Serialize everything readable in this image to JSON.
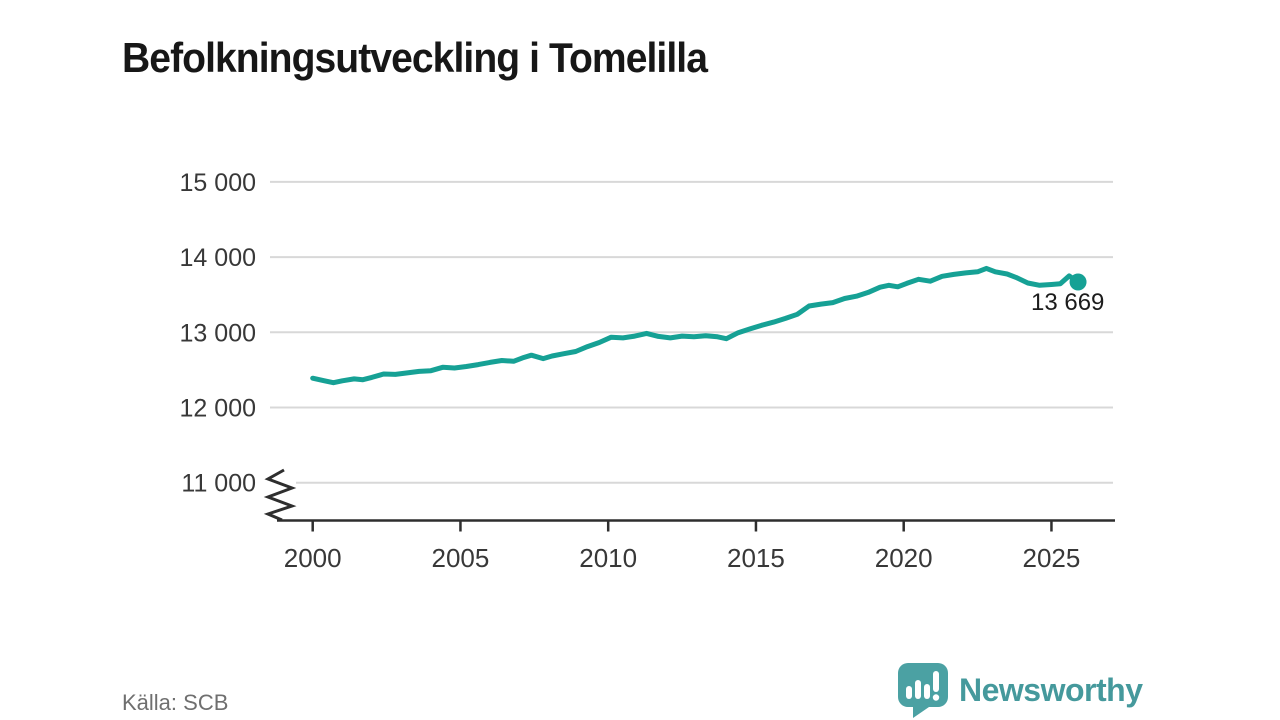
{
  "title": "Befolkningsutveckling i Tomelilla",
  "source": "Källa: SCB",
  "branding": {
    "wordmark": "Newsworthy",
    "logo_icon": "speech-bubble-with-bar-chart-and-exclamation",
    "wordmark_color": "#45999c",
    "icon_color": "#4ba1a3"
  },
  "colors": {
    "line": "#16a195",
    "grid": "#d8d8d8",
    "axis": "#2e2e2e",
    "tick_text": "#383838",
    "title_text": "#171717",
    "muted_text": "#6f6f6f"
  },
  "chart_data": {
    "type": "line",
    "title": "Befolkningsutveckling i Tomelilla",
    "xlabel": "",
    "ylabel": "",
    "x_range": [
      1999,
      2027.3
    ],
    "y_range_displayed": [
      10500,
      15000
    ],
    "y_axis_break": true,
    "grid": "horizontal",
    "has_legend": false,
    "line_width": 5,
    "x_ticks": [
      {
        "value": 2000,
        "label": "2000"
      },
      {
        "value": 2005,
        "label": "2005"
      },
      {
        "value": 2010,
        "label": "2010"
      },
      {
        "value": 2015,
        "label": "2015"
      },
      {
        "value": 2020,
        "label": "2020"
      },
      {
        "value": 2025,
        "label": "2025"
      }
    ],
    "y_ticks": [
      {
        "value": 15000,
        "label": "15 000"
      },
      {
        "value": 14000,
        "label": "14 000"
      },
      {
        "value": 13000,
        "label": "13 000"
      },
      {
        "value": 12000,
        "label": "12 000"
      },
      {
        "value": 11000,
        "label": "11 000"
      }
    ],
    "series": [
      {
        "points": [
          [
            2000.0,
            12390
          ],
          [
            2000.4,
            12355
          ],
          [
            2000.7,
            12330
          ],
          [
            2001.0,
            12355
          ],
          [
            2001.4,
            12380
          ],
          [
            2001.7,
            12370
          ],
          [
            2002.0,
            12400
          ],
          [
            2002.4,
            12445
          ],
          [
            2002.8,
            12440
          ],
          [
            2003.2,
            12460
          ],
          [
            2003.6,
            12480
          ],
          [
            2004.0,
            12490
          ],
          [
            2004.4,
            12535
          ],
          [
            2004.8,
            12525
          ],
          [
            2005.2,
            12545
          ],
          [
            2005.6,
            12570
          ],
          [
            2006.0,
            12600
          ],
          [
            2006.4,
            12625
          ],
          [
            2006.8,
            12615
          ],
          [
            2007.1,
            12660
          ],
          [
            2007.4,
            12695
          ],
          [
            2007.8,
            12650
          ],
          [
            2008.1,
            12685
          ],
          [
            2008.5,
            12715
          ],
          [
            2008.9,
            12745
          ],
          [
            2009.3,
            12810
          ],
          [
            2009.7,
            12865
          ],
          [
            2010.1,
            12935
          ],
          [
            2010.5,
            12925
          ],
          [
            2010.9,
            12950
          ],
          [
            2011.3,
            12985
          ],
          [
            2011.7,
            12945
          ],
          [
            2012.1,
            12925
          ],
          [
            2012.5,
            12950
          ],
          [
            2012.9,
            12940
          ],
          [
            2013.3,
            12955
          ],
          [
            2013.7,
            12940
          ],
          [
            2014.0,
            12915
          ],
          [
            2014.4,
            12995
          ],
          [
            2014.8,
            13045
          ],
          [
            2015.2,
            13095
          ],
          [
            2015.6,
            13135
          ],
          [
            2016.0,
            13185
          ],
          [
            2016.4,
            13240
          ],
          [
            2016.8,
            13350
          ],
          [
            2017.2,
            13375
          ],
          [
            2017.6,
            13395
          ],
          [
            2018.0,
            13450
          ],
          [
            2018.4,
            13480
          ],
          [
            2018.8,
            13530
          ],
          [
            2019.2,
            13600
          ],
          [
            2019.5,
            13625
          ],
          [
            2019.8,
            13605
          ],
          [
            2020.1,
            13650
          ],
          [
            2020.5,
            13705
          ],
          [
            2020.9,
            13680
          ],
          [
            2021.3,
            13745
          ],
          [
            2021.7,
            13770
          ],
          [
            2022.1,
            13790
          ],
          [
            2022.5,
            13805
          ],
          [
            2022.8,
            13850
          ],
          [
            2023.1,
            13805
          ],
          [
            2023.5,
            13775
          ],
          [
            2023.8,
            13730
          ],
          [
            2024.2,
            13655
          ],
          [
            2024.6,
            13625
          ],
          [
            2025.0,
            13635
          ],
          [
            2025.3,
            13645
          ],
          [
            2025.6,
            13750
          ],
          [
            2025.9,
            13669
          ]
        ]
      }
    ],
    "end_point": {
      "year": 2025.9,
      "value": 13669,
      "label": "13 669"
    }
  }
}
